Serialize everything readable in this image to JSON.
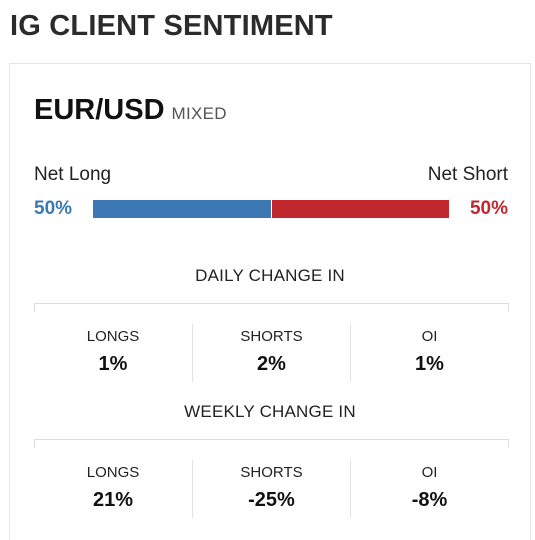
{
  "title": "IG CLIENT SENTIMENT",
  "instrument": {
    "pair": "EUR/USD",
    "status": "MIXED"
  },
  "sentiment": {
    "long_label": "Net Long",
    "short_label": "Net Short",
    "long_pct": "50%",
    "short_pct": "50%",
    "long_fraction": 0.5,
    "short_fraction": 0.5,
    "colors": {
      "long": "#3b78b4",
      "short": "#c0282d"
    }
  },
  "daily": {
    "heading": "DAILY CHANGE IN",
    "columns": [
      {
        "label": "LONGS",
        "value": "1%"
      },
      {
        "label": "SHORTS",
        "value": "2%"
      },
      {
        "label": "OI",
        "value": "1%"
      }
    ]
  },
  "weekly": {
    "heading": "WEEKLY CHANGE IN",
    "columns": [
      {
        "label": "LONGS",
        "value": "21%"
      },
      {
        "label": "SHORTS",
        "value": "-25%"
      },
      {
        "label": "OI",
        "value": "-8%"
      }
    ]
  }
}
